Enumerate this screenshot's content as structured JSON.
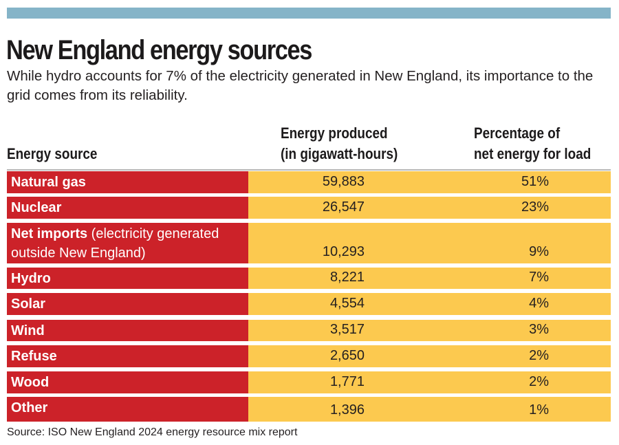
{
  "colors": {
    "top_bar": "#85B4C8",
    "source_column": "#CC2229",
    "value_columns": "#FCC94F",
    "header_rule": "#B8B8B8"
  },
  "header": {
    "title": "New England energy sources",
    "subtitle": "While hydro accounts for 7% of the electricity generated in New England, its importance to the grid comes from its reliability."
  },
  "table": {
    "columns": {
      "source": "Energy source",
      "energy_line1": "Energy produced",
      "energy_line2": "(in gigawatt-hours)",
      "pct_line1": "Percentage of",
      "pct_line2": "net energy for load"
    },
    "rows": [
      {
        "name": "Natural gas",
        "note": "",
        "energy": "59,883",
        "pct": "51%"
      },
      {
        "name": "Nuclear",
        "note": "",
        "energy": "26,547",
        "pct": "23%"
      },
      {
        "name": "Net imports",
        "note": " (electricity generated outside New England)",
        "energy": "10,293",
        "pct": "9%"
      },
      {
        "name": "Hydro",
        "note": "",
        "energy": "8,221",
        "pct": "7%"
      },
      {
        "name": "Solar",
        "note": "",
        "energy": "4,554",
        "pct": "4%"
      },
      {
        "name": "Wind",
        "note": "",
        "energy": "3,517",
        "pct": "3%"
      },
      {
        "name": "Refuse",
        "note": "",
        "energy": "2,650",
        "pct": "2%"
      },
      {
        "name": "Wood",
        "note": "",
        "energy": "1,771",
        "pct": "2%"
      },
      {
        "name": "Other",
        "note": "",
        "energy": "1,396",
        "pct": "1%"
      }
    ]
  },
  "footer": {
    "source": "Source: ISO New England 2024 energy resource mix report"
  },
  "chart_data": {
    "type": "table",
    "title": "New England energy sources",
    "subtitle": "While hydro accounts for 7% of the electricity generated in New England, its importance to the grid comes from its reliability.",
    "columns": [
      "Energy source",
      "Energy produced (in gigawatt-hours)",
      "Percentage of net energy for load"
    ],
    "categories": [
      "Natural gas",
      "Nuclear",
      "Net imports (electricity generated outside New England)",
      "Hydro",
      "Solar",
      "Wind",
      "Refuse",
      "Wood",
      "Other"
    ],
    "series": [
      {
        "name": "Energy produced (GWh)",
        "values": [
          59883,
          26547,
          10293,
          8221,
          4554,
          3517,
          2650,
          1771,
          1396
        ]
      },
      {
        "name": "Percentage of net energy for load (%)",
        "values": [
          51,
          23,
          9,
          7,
          4,
          3,
          2,
          2,
          1
        ]
      }
    ],
    "source": "Source: ISO New England 2024 energy resource mix report"
  }
}
